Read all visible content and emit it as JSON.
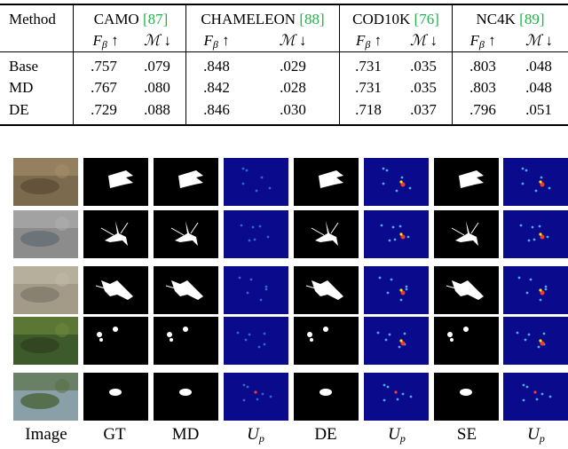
{
  "table": {
    "method_header": "Method",
    "datasets": [
      {
        "name": "CAMO",
        "cite": "[87]"
      },
      {
        "name": "CHAMELEON",
        "cite": "[88]"
      },
      {
        "name": "COD10K",
        "cite": "[76]"
      },
      {
        "name": "NC4K",
        "cite": "[89]"
      }
    ],
    "metric_headers": [
      "F",
      "β",
      "↑",
      "ℳ",
      "↓"
    ],
    "rows": [
      {
        "method": "Base",
        "values": [
          ".757",
          ".079",
          ".848",
          ".029",
          ".731",
          ".035",
          ".803",
          ".048"
        ]
      },
      {
        "method": "MD",
        "values": [
          ".767",
          ".080",
          ".842",
          ".028",
          ".731",
          ".035",
          ".803",
          ".048"
        ]
      },
      {
        "method": "DE",
        "values": [
          ".729",
          ".088",
          ".846",
          ".030",
          ".718",
          ".037",
          ".796",
          ".051"
        ]
      }
    ]
  },
  "figure": {
    "columns": [
      "Image",
      "GT",
      "MD",
      "U",
      "DE",
      "U",
      "SE",
      "U"
    ],
    "subscript": "p"
  },
  "colors": {
    "cite": "#22b14c",
    "uncertainty_bg": "#0a0a8c",
    "mask_bg": "#000000",
    "mask_fg": "#ffffff"
  }
}
